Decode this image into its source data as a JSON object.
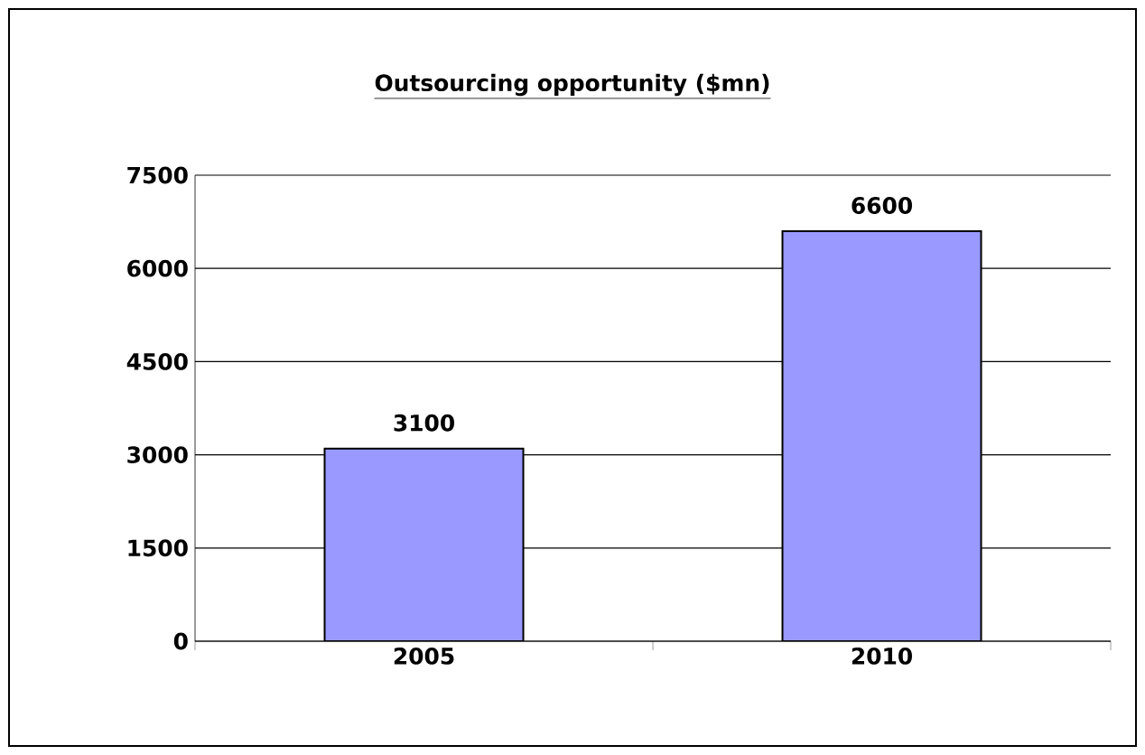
{
  "chart_data": {
    "type": "bar",
    "title": "Outsourcing opportunity ($mn)",
    "categories": [
      "2005",
      "2010"
    ],
    "values": [
      3100,
      6600
    ],
    "color": "#9999ff",
    "ylim": [
      0,
      7500
    ],
    "yticks": [
      0,
      1500,
      3000,
      4500,
      6000,
      7500
    ],
    "grid": "y",
    "data_labels": true
  }
}
